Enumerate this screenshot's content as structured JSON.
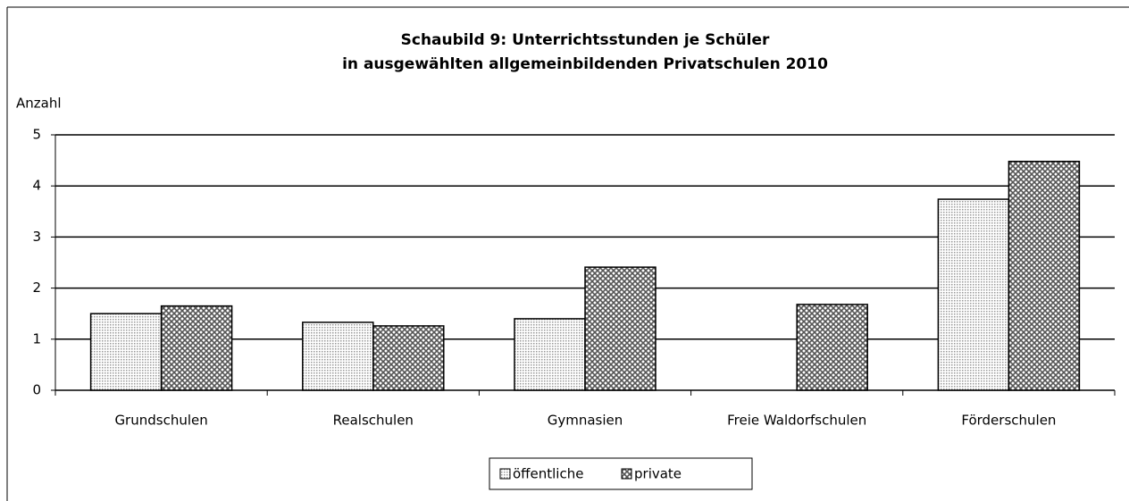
{
  "chart_data": {
    "type": "bar",
    "title": [
      "Schaubild 9: Unterrichtsstunden je Schüler",
      "in ausgewählten allgemeinbildenden Privatschulen 2010"
    ],
    "y_label": "Anzahl",
    "categories": [
      "Grundschulen",
      "Realschulen",
      "Gymnasien",
      "Freie Waldorfschulen",
      "Förderschulen"
    ],
    "series": [
      {
        "name": "öffentliche",
        "color": "#9a9a9a",
        "values": [
          1.5,
          1.33,
          1.4,
          null,
          3.74
        ]
      },
      {
        "name": "private",
        "color": "#555555",
        "values": [
          1.65,
          1.26,
          2.41,
          1.68,
          4.48
        ]
      }
    ],
    "ylim": [
      0,
      5
    ],
    "yticks": [
      0,
      1,
      2,
      3,
      4,
      5
    ],
    "grid": true,
    "legend": "bottom"
  }
}
